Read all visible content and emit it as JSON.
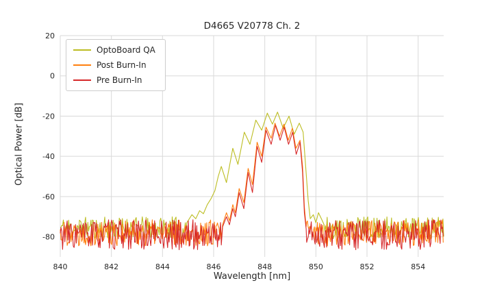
{
  "chart_data": {
    "type": "line",
    "title": "D4665 V20778 Ch. 2",
    "xlabel": "Wavelength [nm]",
    "ylabel": "Optical Power [dB]",
    "xlim": [
      840,
      855
    ],
    "ylim": [
      -90,
      20
    ],
    "xticks": [
      840,
      842,
      844,
      846,
      848,
      850,
      852,
      854
    ],
    "yticks": [
      20,
      0,
      -20,
      -40,
      -60,
      -80
    ],
    "grid": true,
    "grid_color": "#d9d9d9",
    "background": "#ffffff",
    "legend_position": "upper left",
    "noise_dx": 0.03,
    "series": [
      {
        "name": "OptoBoard QA",
        "color": "#bcbd22",
        "seed": 11,
        "floor_mean": -75.5,
        "floor_spread": 5.5,
        "floor_left": [
          840.0,
          844.92
        ],
        "floor_right": [
          850.35,
          855.0
        ],
        "points": [
          [
            844.95,
            -73
          ],
          [
            845.0,
            -72
          ],
          [
            845.15,
            -69
          ],
          [
            845.3,
            -71
          ],
          [
            845.45,
            -67
          ],
          [
            845.6,
            -68.5
          ],
          [
            845.75,
            -64
          ],
          [
            845.9,
            -61
          ],
          [
            846.05,
            -57
          ],
          [
            846.18,
            -50
          ],
          [
            846.3,
            -45
          ],
          [
            846.5,
            -53
          ],
          [
            846.75,
            -36
          ],
          [
            846.95,
            -44
          ],
          [
            847.2,
            -28
          ],
          [
            847.42,
            -34
          ],
          [
            847.65,
            -22
          ],
          [
            847.88,
            -27
          ],
          [
            848.1,
            -18.5
          ],
          [
            848.3,
            -24
          ],
          [
            848.5,
            -18
          ],
          [
            848.72,
            -26
          ],
          [
            848.95,
            -20
          ],
          [
            849.15,
            -29
          ],
          [
            849.35,
            -23.5
          ],
          [
            849.5,
            -28
          ],
          [
            849.6,
            -45
          ],
          [
            849.7,
            -62
          ],
          [
            849.78,
            -71
          ],
          [
            849.9,
            -69
          ],
          [
            850.0,
            -73
          ],
          [
            850.1,
            -68
          ],
          [
            850.25,
            -72
          ],
          [
            850.32,
            -74
          ]
        ]
      },
      {
        "name": "Post Burn-In",
        "color": "#ff7f0e",
        "seed": 22,
        "floor_mean": -78,
        "floor_spread": 6.5,
        "floor_left": [
          840.0,
          846.32
        ],
        "floor_right": [
          849.64,
          855.0
        ],
        "points": [
          [
            846.35,
            -74
          ],
          [
            846.5,
            -68
          ],
          [
            846.62,
            -72
          ],
          [
            846.75,
            -64
          ],
          [
            846.85,
            -68
          ],
          [
            847.0,
            -56
          ],
          [
            847.18,
            -63
          ],
          [
            847.35,
            -46
          ],
          [
            847.52,
            -54
          ],
          [
            847.7,
            -33
          ],
          [
            847.88,
            -40
          ],
          [
            848.05,
            -25.5
          ],
          [
            848.25,
            -31
          ],
          [
            848.4,
            -23.5
          ],
          [
            848.58,
            -30
          ],
          [
            848.75,
            -24
          ],
          [
            848.92,
            -32
          ],
          [
            849.08,
            -26
          ],
          [
            849.22,
            -36
          ],
          [
            849.38,
            -32
          ],
          [
            849.48,
            -45
          ],
          [
            849.55,
            -65
          ],
          [
            849.62,
            -75
          ]
        ]
      },
      {
        "name": "Pre Burn-In",
        "color": "#d62728",
        "seed": 33,
        "floor_mean": -79,
        "floor_spread": 7.5,
        "floor_left": [
          840.0,
          846.32
        ],
        "floor_right": [
          849.64,
          855.0
        ],
        "points": [
          [
            846.35,
            -75
          ],
          [
            846.5,
            -70
          ],
          [
            846.62,
            -74
          ],
          [
            846.75,
            -66
          ],
          [
            846.85,
            -70
          ],
          [
            847.0,
            -58
          ],
          [
            847.18,
            -66
          ],
          [
            847.35,
            -48
          ],
          [
            847.52,
            -58
          ],
          [
            847.7,
            -35
          ],
          [
            847.88,
            -43
          ],
          [
            848.05,
            -27
          ],
          [
            848.25,
            -34
          ],
          [
            848.42,
            -24.5
          ],
          [
            848.6,
            -32
          ],
          [
            848.76,
            -25.5
          ],
          [
            848.93,
            -34
          ],
          [
            849.09,
            -28
          ],
          [
            849.23,
            -39
          ],
          [
            849.38,
            -33
          ],
          [
            849.48,
            -48
          ],
          [
            849.55,
            -68
          ],
          [
            849.62,
            -76
          ]
        ]
      }
    ]
  }
}
